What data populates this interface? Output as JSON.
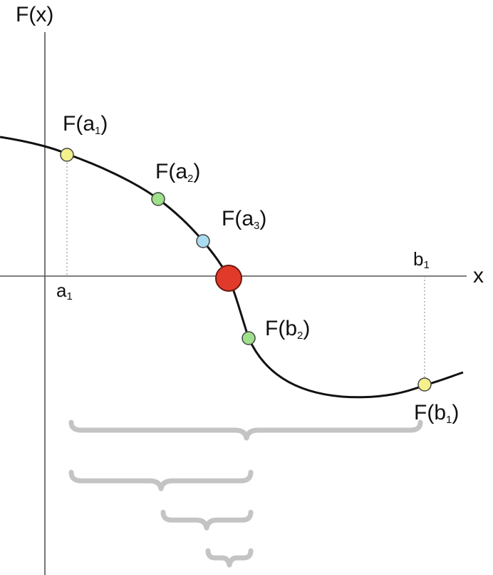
{
  "axes": {
    "y_label": "F(x)",
    "x_label": "x"
  },
  "ticks": {
    "a1": {
      "base": "a",
      "sub": "1"
    },
    "b1": {
      "base": "b",
      "sub": "1"
    }
  },
  "points": {
    "fa1": {
      "base": "F(a",
      "sub": "1",
      "tail": ")",
      "color": "#f4f18c"
    },
    "fa2": {
      "base": "F(a",
      "sub": "2",
      "tail": ")",
      "color": "#9fe08a"
    },
    "fa3": {
      "base": "F(a",
      "sub": "3",
      "tail": ")",
      "color": "#a9dcf0"
    },
    "fb2": {
      "base": "F(b",
      "sub": "2",
      "tail": ")",
      "color": "#9fe08a"
    },
    "fb1": {
      "base": "F(b",
      "sub": "1",
      "tail": ")",
      "color": "#f4f18c"
    }
  },
  "root_color": "#e23a2a",
  "brace_color": "#c4c4c4",
  "curve_color": "#111111"
}
